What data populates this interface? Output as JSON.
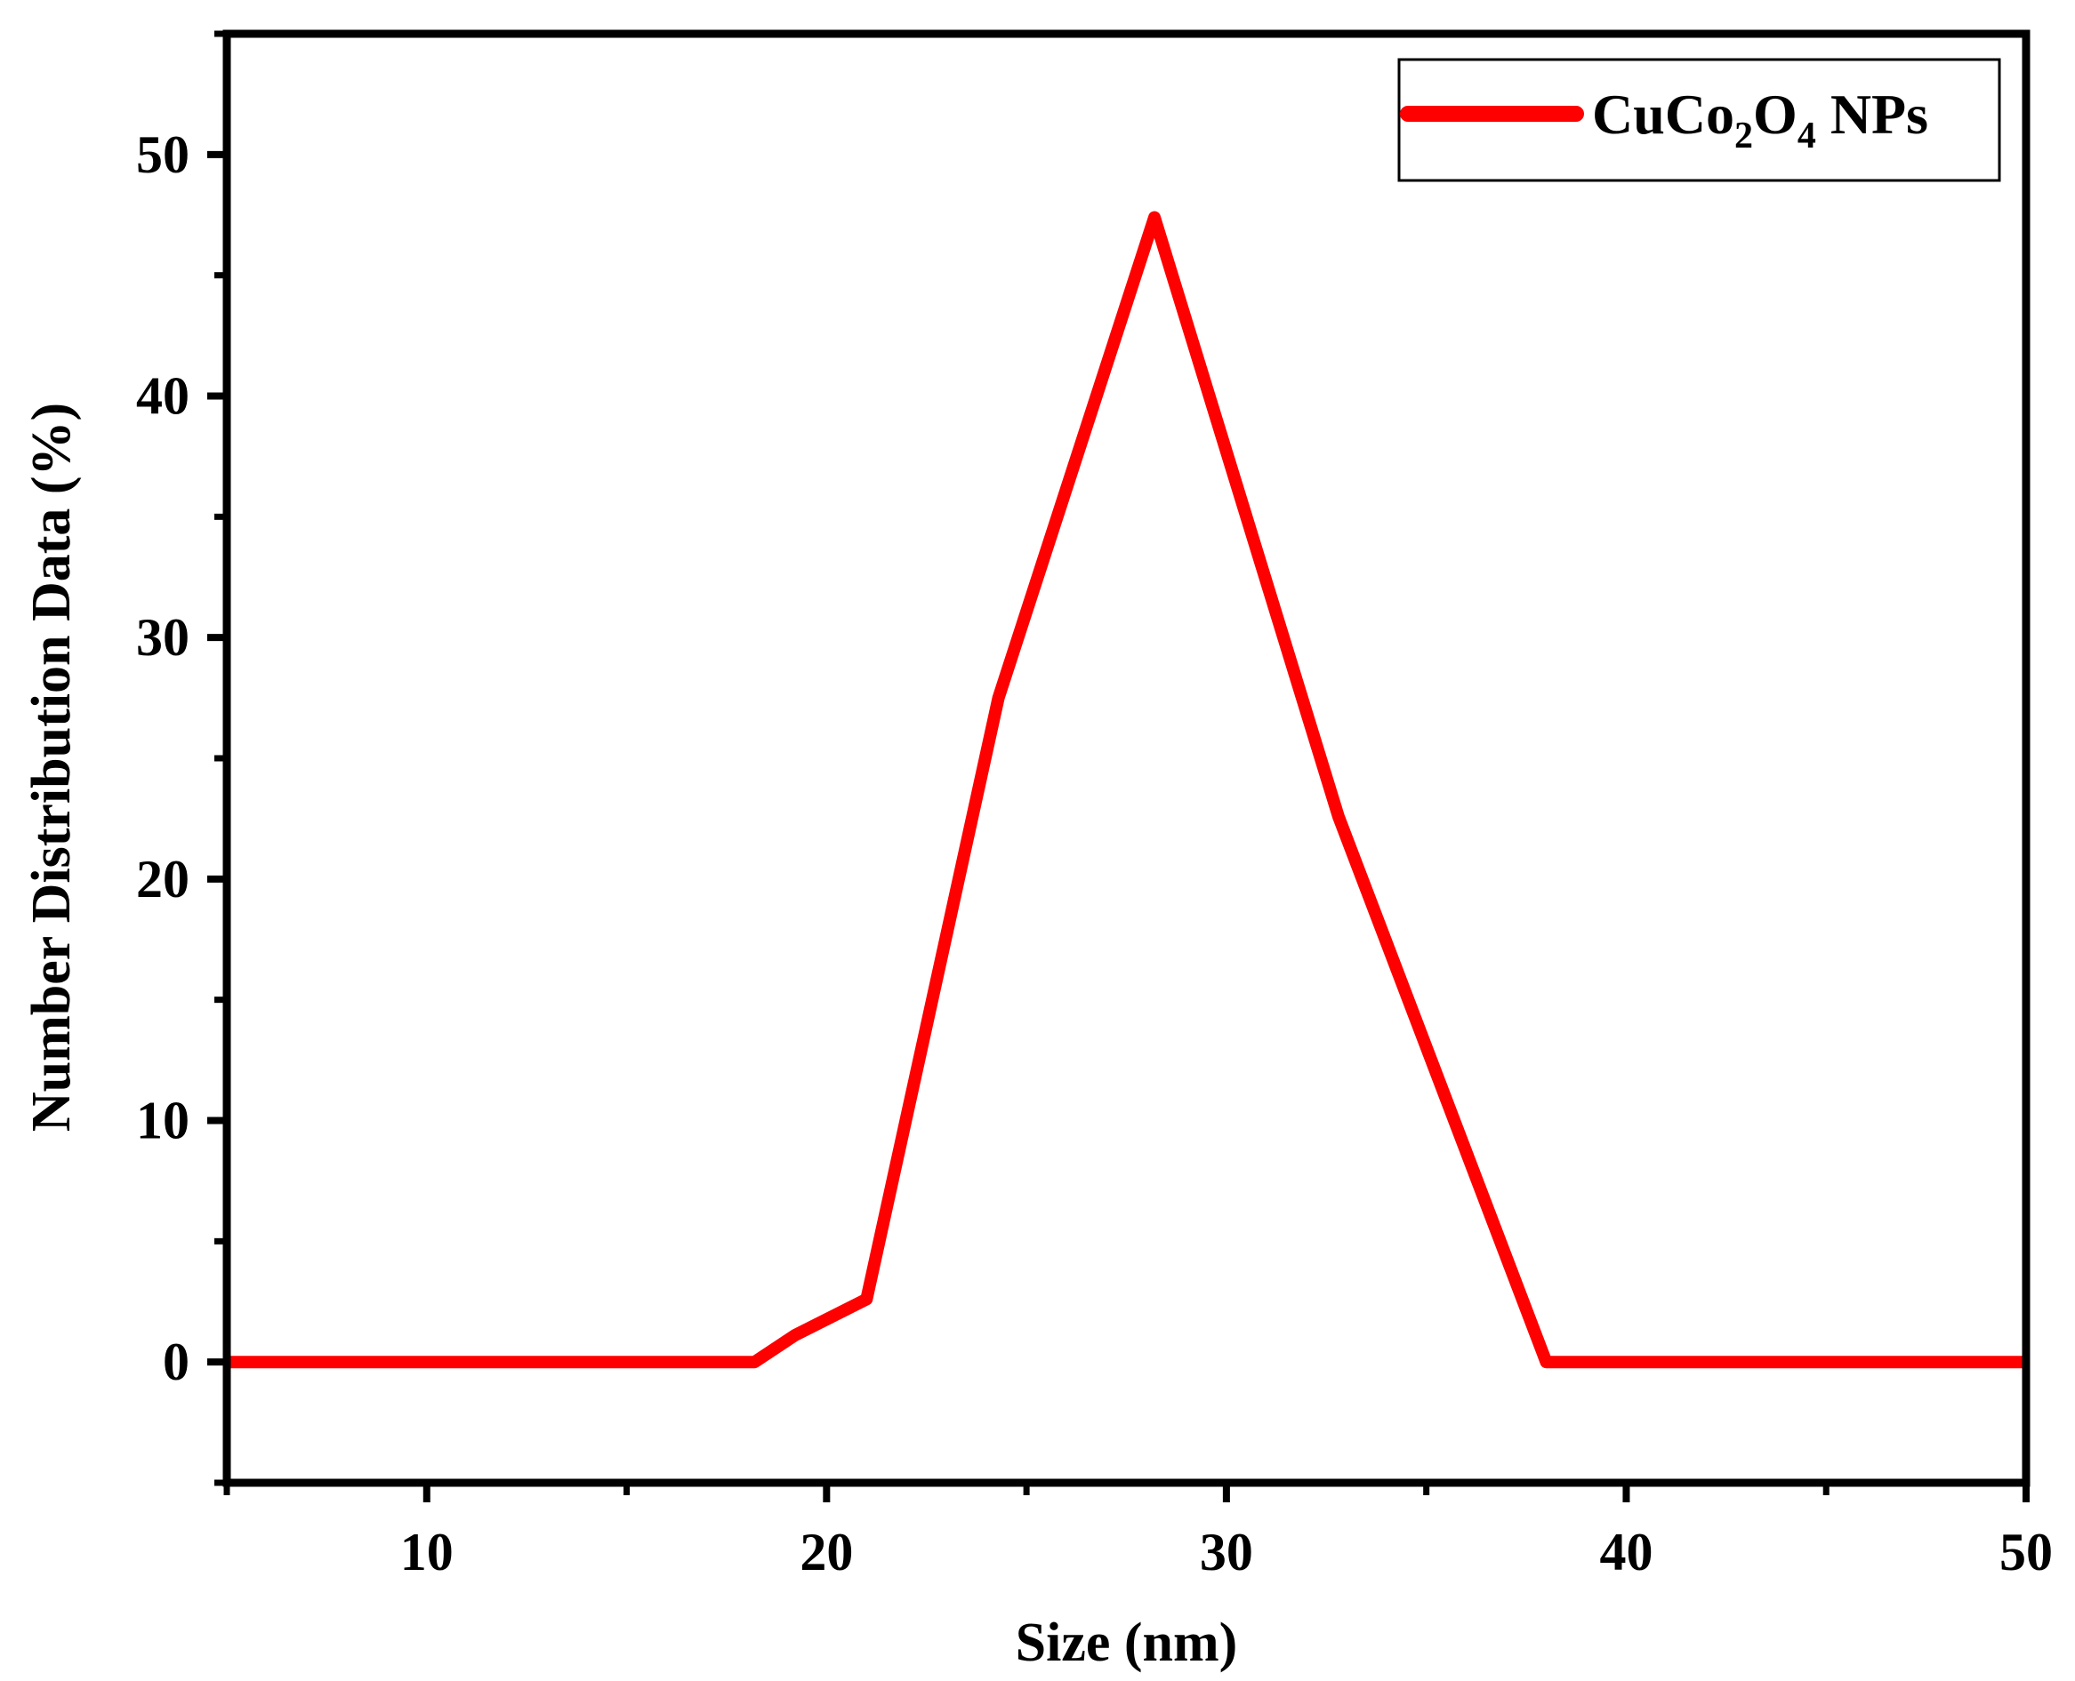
{
  "chart_data": {
    "type": "line",
    "title": "",
    "xlabel": "Size (nm)",
    "ylabel": "Number Distribution Data (%)",
    "xlim": [
      5,
      50
    ],
    "ylim": [
      -5,
      55
    ],
    "x_ticks": [
      10,
      20,
      30,
      40,
      50
    ],
    "x_tick_labels": [
      "10",
      "20",
      "30",
      "40",
      "50"
    ],
    "y_ticks": [
      0,
      10,
      20,
      30,
      40,
      50
    ],
    "y_tick_labels": [
      "0",
      "10",
      "20",
      "30",
      "40",
      "50"
    ],
    "grid": false,
    "legend_position": "top-right",
    "series": [
      {
        "name": "CuCo2O4 NPs",
        "legend_label": {
          "base1": "CuCo",
          "sub1": "2",
          "base2": "O",
          "sub2": "4",
          "suffix": " NPs"
        },
        "color": "#ff0000",
        "x": [
          5,
          18.2,
          19.2,
          21.0,
          24.3,
          28.2,
          32.8,
          38.0,
          50
        ],
        "y": [
          0,
          0,
          1.1,
          2.6,
          27.5,
          47.4,
          22.6,
          0,
          0
        ]
      }
    ]
  }
}
